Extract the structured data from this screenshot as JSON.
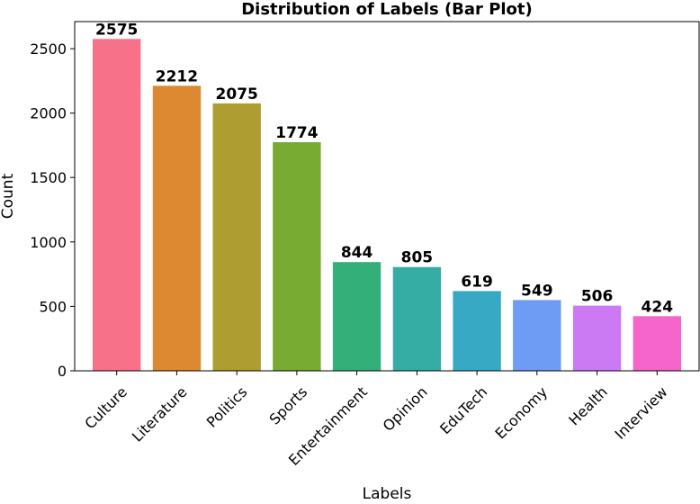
{
  "chart_data": {
    "type": "bar",
    "title": "Distribution of Labels (Bar Plot)",
    "xlabel": "Labels",
    "ylabel": "Count",
    "categories": [
      "Culture",
      "Literature",
      "Politics",
      "Sports",
      "Entertainment",
      "Opinion",
      "EduTech",
      "Economy",
      "Health",
      "Interview"
    ],
    "values": [
      2575,
      2212,
      2075,
      1774,
      844,
      805,
      619,
      549,
      506,
      424
    ],
    "colors": [
      "#f77189",
      "#dc8932",
      "#ae9d31",
      "#77ab31",
      "#33b07a",
      "#36ada4",
      "#38a9c5",
      "#6e9bf4",
      "#cc7af4",
      "#f565cc"
    ],
    "ylim": [
      0,
      2710
    ],
    "yticks": [
      0,
      500,
      1000,
      1500,
      2000,
      2500
    ],
    "grid": false,
    "legend": "none",
    "data_labels": true
  }
}
